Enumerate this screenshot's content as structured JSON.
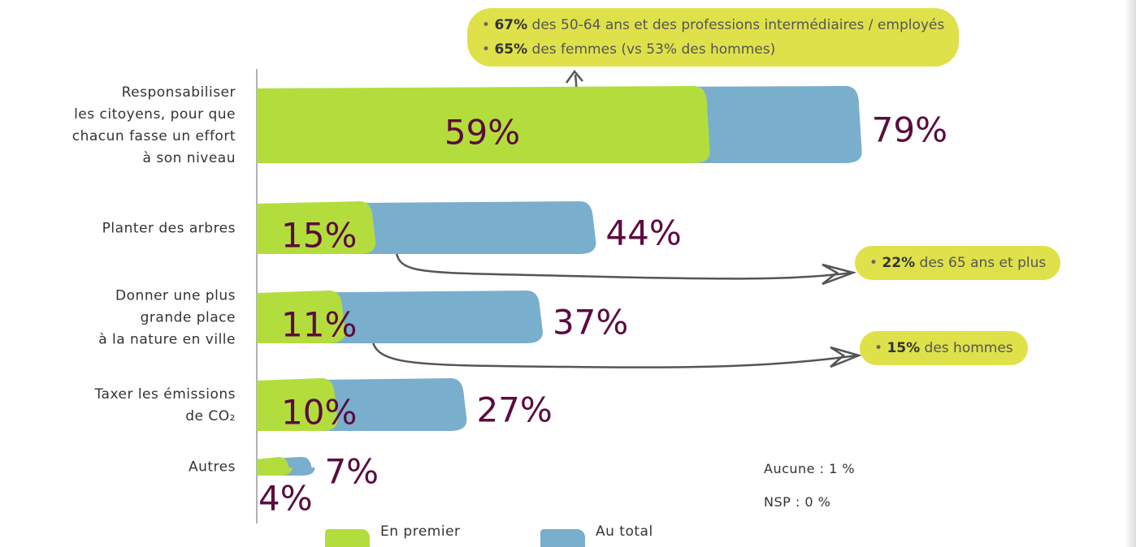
{
  "chart_data": {
    "type": "bar",
    "orientation": "horizontal",
    "categories": [
      "Responsabiliser\nles citoyens, pour que\nchacun fasse un effort\nà son niveau",
      "Planter des arbres",
      "Donner une plus\ngrande place\nà la nature en ville",
      "Taxer les émissions\nde CO₂",
      "Autres"
    ],
    "series": [
      {
        "name": "En premier",
        "color": "#b3dd3c",
        "values": [
          59,
          15,
          11,
          10,
          4
        ],
        "value_labels": [
          "59%",
          "15%",
          "11%",
          "10%",
          "4%"
        ]
      },
      {
        "name": "Au total",
        "color": "#7aaecd",
        "values": [
          79,
          44,
          37,
          27,
          7
        ],
        "value_labels": [
          "79%",
          "44%",
          "37%",
          "27%",
          "7%"
        ]
      }
    ],
    "xlim": [
      0,
      80
    ],
    "annotations": [
      {
        "lines": [
          {
            "strong": "67%",
            "text": "des 50-64 ans et des professions intermédiaires / employés"
          },
          {
            "strong": "65%",
            "text": "des femmes (vs 53% des hommes)"
          }
        ]
      },
      {
        "lines": [
          {
            "strong": "22%",
            "text": "des 65 ans et plus"
          }
        ]
      },
      {
        "lines": [
          {
            "strong": "15%",
            "text": "des hommes"
          }
        ]
      }
    ],
    "notes": [
      "Aucune : 1 %",
      "NSP : 0 %"
    ]
  }
}
